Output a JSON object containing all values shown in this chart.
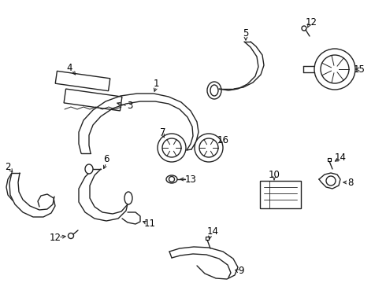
{
  "background_color": "#ffffff",
  "line_color": "#222222",
  "line_width": 1.0,
  "label_fontsize": 8.5,
  "fig_width": 4.9,
  "fig_height": 3.6,
  "dpi": 100
}
